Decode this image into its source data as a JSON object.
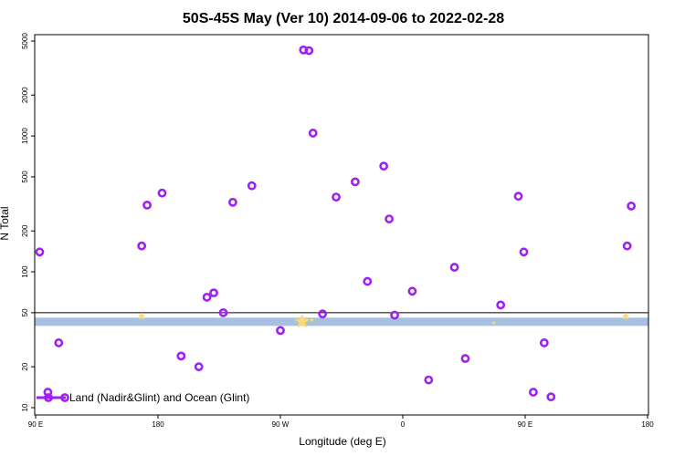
{
  "colors": {
    "marker": "#a020f0",
    "band": "#a8c0e0",
    "star": "#ffd870",
    "axis": "#000000"
  },
  "chart_data": {
    "type": "scatter",
    "title": "50S-45S May (Ver 10)   2014-09-06 to 2022-02-28",
    "xlabel": "Longitude (deg E)",
    "ylabel": "N Total",
    "y_scale": "log",
    "xlim": [
      90,
      540
    ],
    "ylim": [
      10,
      5000
    ],
    "x_ticks": [
      {
        "value": 90,
        "label": "90 E"
      },
      {
        "value": 180,
        "label": "180"
      },
      {
        "value": 270,
        "label": "90 W"
      },
      {
        "value": 360,
        "label": "0"
      },
      {
        "value": 450,
        "label": "90 E"
      },
      {
        "value": 540,
        "label": "180"
      }
    ],
    "y_ticks": [
      {
        "value": 10,
        "label": "10"
      },
      {
        "value": 20,
        "label": "20"
      },
      {
        "value": 50,
        "label": "50"
      },
      {
        "value": 100,
        "label": "100"
      },
      {
        "value": 200,
        "label": "200"
      },
      {
        "value": 500,
        "label": "500"
      },
      {
        "value": 1000,
        "label": "1000"
      },
      {
        "value": 2000,
        "label": "2000"
      },
      {
        "value": 5000,
        "label": "5000"
      }
    ],
    "reference_line": {
      "y": 50
    },
    "band": {
      "y_low": 40,
      "y_high": 46
    },
    "series": [
      {
        "name": "Land (Nadir&Glint) and Ocean (Glint)",
        "points": [
          {
            "x": 93,
            "y": 140
          },
          {
            "x": 107,
            "y": 30
          },
          {
            "x": 99,
            "y": 13
          },
          {
            "x": 168,
            "y": 155
          },
          {
            "x": 172,
            "y": 310
          },
          {
            "x": 183,
            "y": 380
          },
          {
            "x": 197,
            "y": 24
          },
          {
            "x": 210,
            "y": 20
          },
          {
            "x": 216,
            "y": 65
          },
          {
            "x": 221,
            "y": 70
          },
          {
            "x": 228,
            "y": 50
          },
          {
            "x": 235,
            "y": 325
          },
          {
            "x": 249,
            "y": 430
          },
          {
            "x": 270,
            "y": 37
          },
          {
            "x": 287,
            "y": 4300
          },
          {
            "x": 291,
            "y": 4250
          },
          {
            "x": 294,
            "y": 1050
          },
          {
            "x": 301,
            "y": 49
          },
          {
            "x": 311,
            "y": 355
          },
          {
            "x": 325,
            "y": 460
          },
          {
            "x": 334,
            "y": 85
          },
          {
            "x": 346,
            "y": 600
          },
          {
            "x": 350,
            "y": 245
          },
          {
            "x": 354,
            "y": 48
          },
          {
            "x": 367,
            "y": 72
          },
          {
            "x": 379,
            "y": 16
          },
          {
            "x": 398,
            "y": 108
          },
          {
            "x": 406,
            "y": 23
          },
          {
            "x": 432,
            "y": 57
          },
          {
            "x": 445,
            "y": 360
          },
          {
            "x": 449,
            "y": 140
          },
          {
            "x": 456,
            "y": 13
          },
          {
            "x": 464,
            "y": 30
          },
          {
            "x": 469,
            "y": 12
          },
          {
            "x": 525,
            "y": 155
          },
          {
            "x": 528,
            "y": 305
          }
        ]
      }
    ],
    "stars": [
      {
        "x": 168,
        "y": 47,
        "size": "small"
      },
      {
        "x": 286,
        "y": 43,
        "size": "large"
      },
      {
        "x": 293,
        "y": 44,
        "size": "tiny"
      },
      {
        "x": 427,
        "y": 42,
        "size": "tiny"
      },
      {
        "x": 524,
        "y": 47,
        "size": "small"
      }
    ],
    "legend": {
      "position": "bottom-left",
      "label": "Land (Nadir&Glint) and Ocean (Glint)"
    }
  }
}
